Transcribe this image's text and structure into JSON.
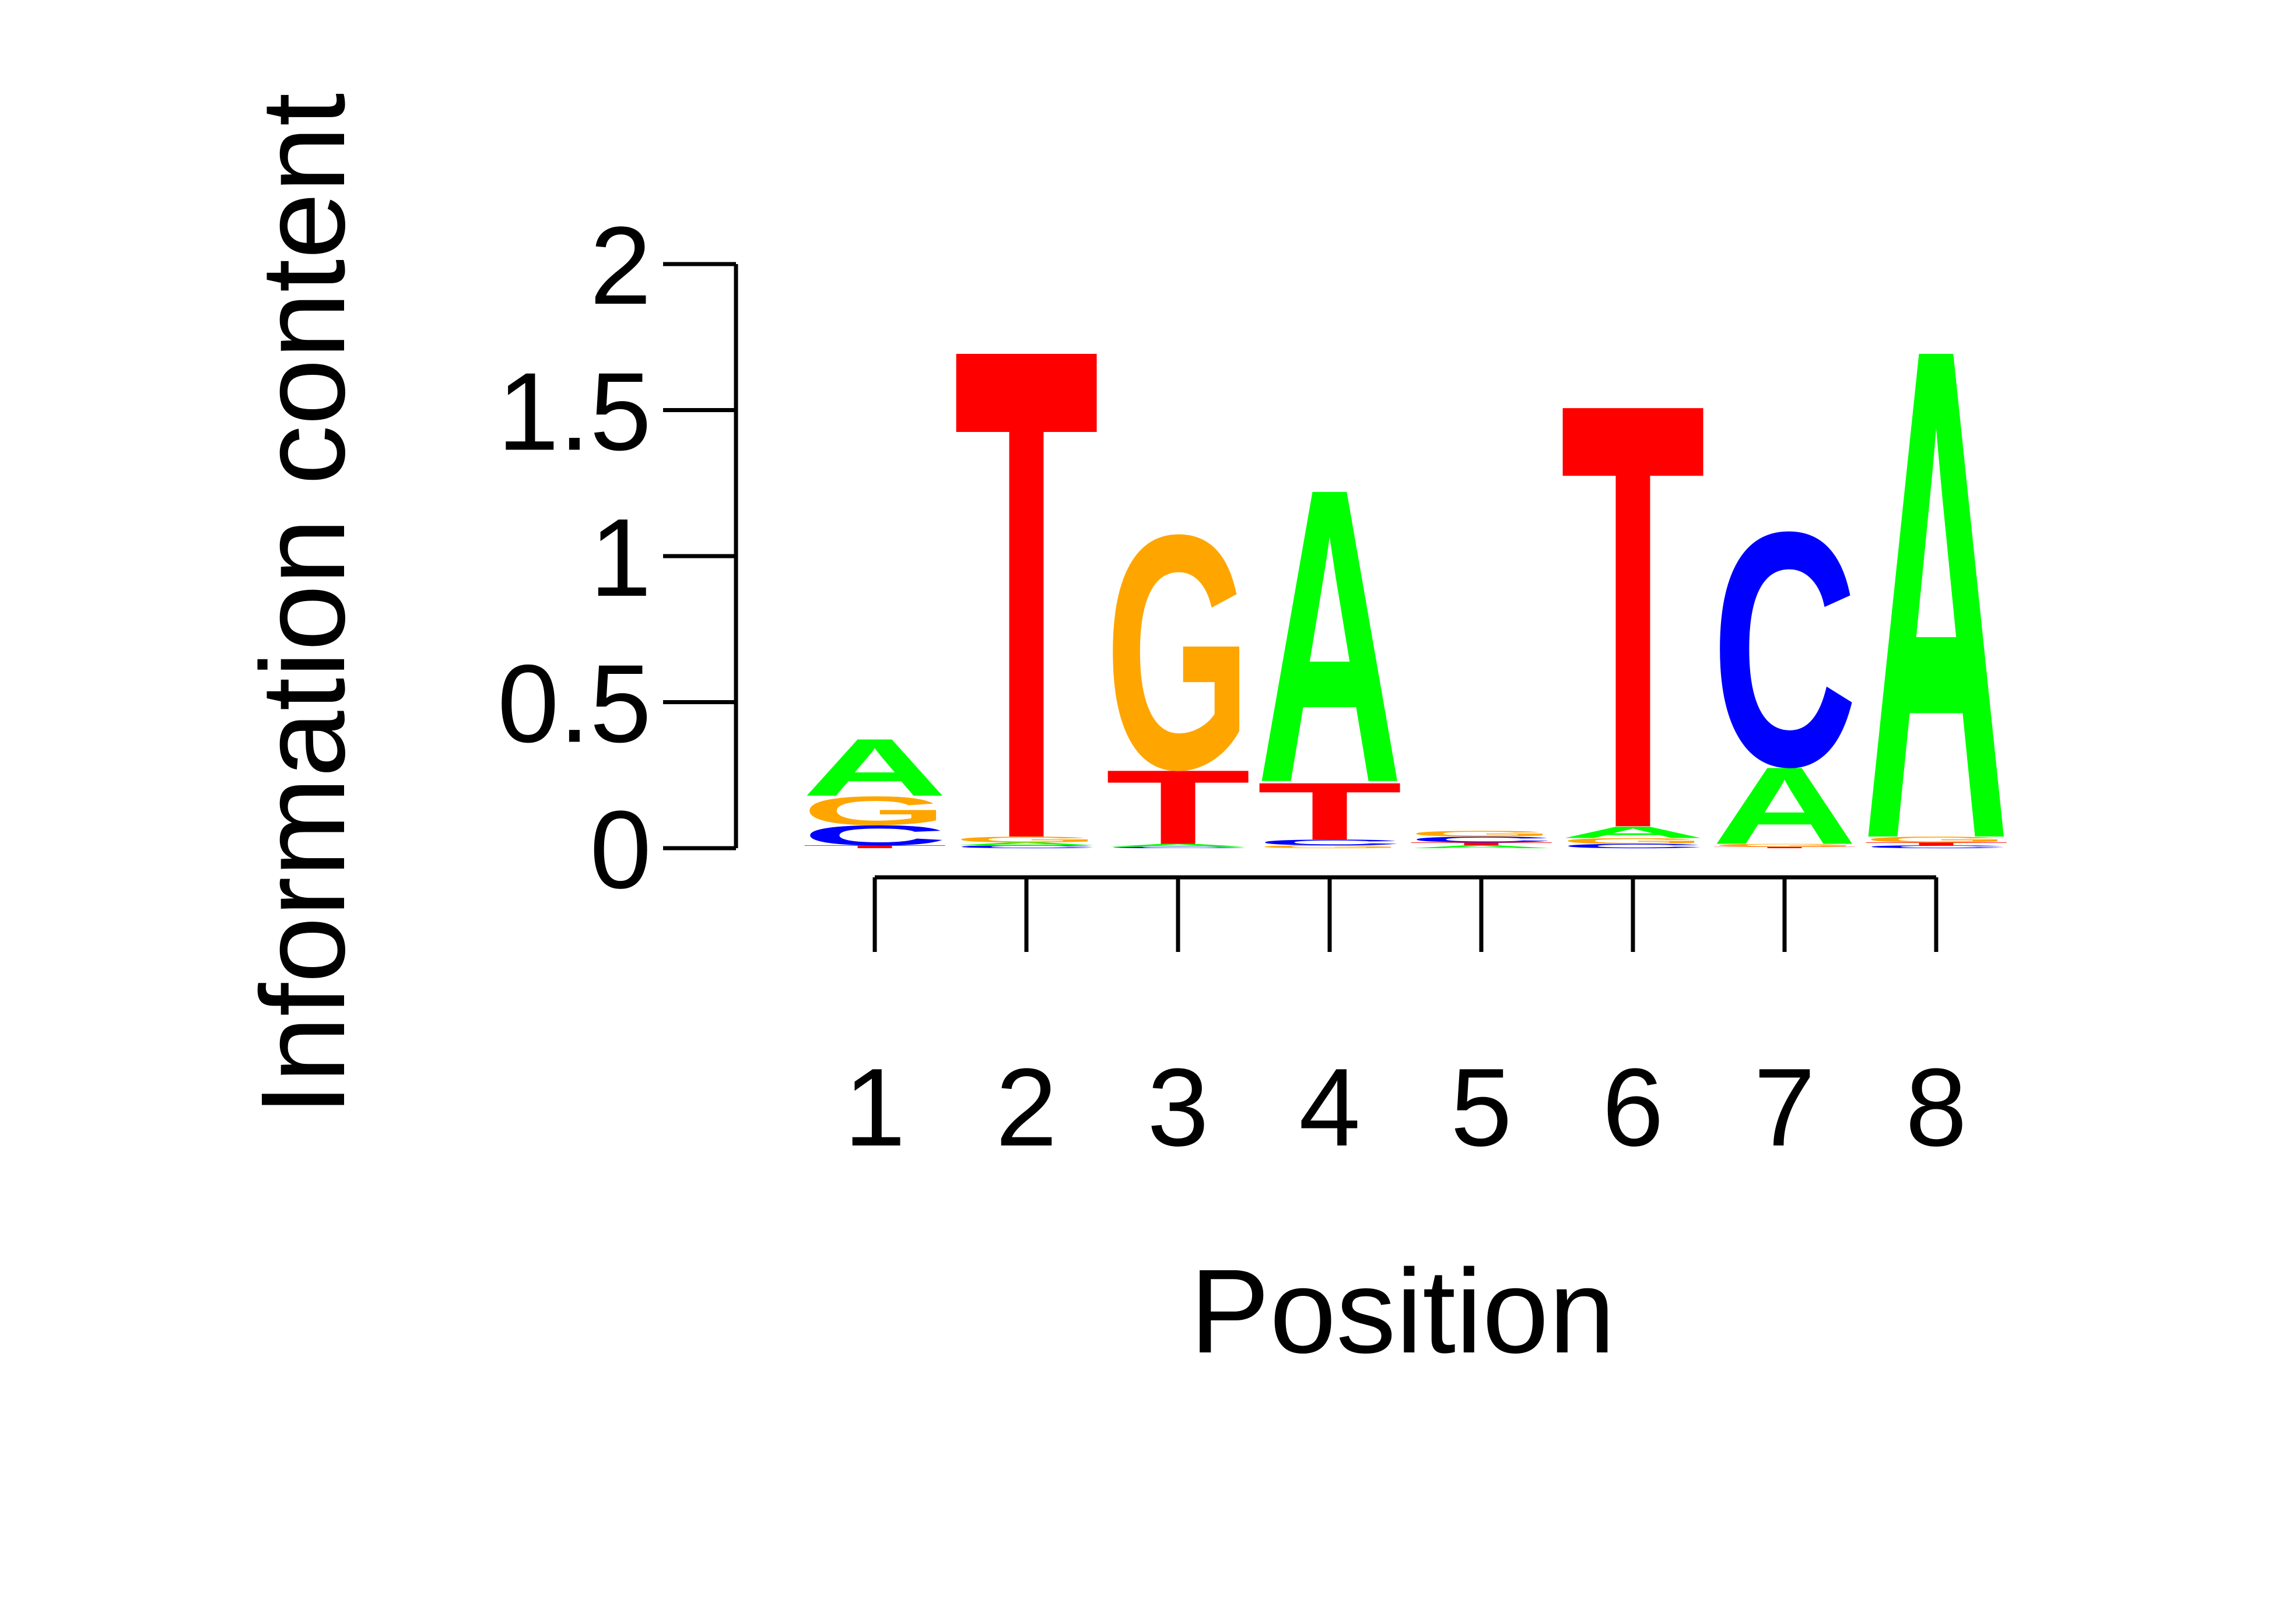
{
  "chart_data": {
    "type": "sequence-logo",
    "title": "",
    "xlabel": "Position",
    "ylabel": "Information content",
    "ylim": [
      0,
      2
    ],
    "yticks": [
      "0",
      "0.5",
      "1",
      "1.5",
      "2"
    ],
    "xticks": [
      "1",
      "2",
      "3",
      "4",
      "5",
      "6",
      "7",
      "8"
    ],
    "colors": {
      "A": "#00ff00",
      "C": "#0000ff",
      "G": "#ffa500",
      "T": "#ff0000"
    },
    "positions": [
      {
        "position": "1",
        "letters": [
          {
            "base": "T",
            "height": 0.01
          },
          {
            "base": "C",
            "height": 0.07
          },
          {
            "base": "G",
            "height": 0.1
          },
          {
            "base": "A",
            "height": 0.2
          }
        ]
      },
      {
        "position": "2",
        "letters": [
          {
            "base": "C",
            "height": 0.01
          },
          {
            "base": "A",
            "height": 0.01
          },
          {
            "base": "G",
            "height": 0.02
          },
          {
            "base": "T",
            "height": 1.72
          }
        ]
      },
      {
        "position": "3",
        "letters": [
          {
            "base": "C",
            "height": 0.005
          },
          {
            "base": "A",
            "height": 0.01
          },
          {
            "base": "T",
            "height": 0.26
          },
          {
            "base": "G",
            "height": 0.82
          }
        ]
      },
      {
        "position": "4",
        "letters": [
          {
            "base": "G",
            "height": 0.01
          },
          {
            "base": "C",
            "height": 0.02
          },
          {
            "base": "T",
            "height": 0.2
          },
          {
            "base": "A",
            "height": 1.03
          }
        ]
      },
      {
        "position": "5",
        "letters": [
          {
            "base": "A",
            "height": 0.01
          },
          {
            "base": "T",
            "height": 0.01
          },
          {
            "base": "C",
            "height": 0.02
          },
          {
            "base": "G",
            "height": 0.02
          }
        ]
      },
      {
        "position": "6",
        "letters": [
          {
            "base": "C",
            "height": 0.015
          },
          {
            "base": "G",
            "height": 0.02
          },
          {
            "base": "A",
            "height": 0.04
          },
          {
            "base": "T",
            "height": 1.49
          }
        ]
      },
      {
        "position": "7",
        "letters": [
          {
            "base": "T",
            "height": 0.005
          },
          {
            "base": "G",
            "height": 0.01
          },
          {
            "base": "A",
            "height": 0.27
          },
          {
            "base": "C",
            "height": 0.82
          }
        ]
      },
      {
        "position": "8",
        "letters": [
          {
            "base": "C",
            "height": 0.01
          },
          {
            "base": "T",
            "height": 0.01
          },
          {
            "base": "G",
            "height": 0.02
          },
          {
            "base": "A",
            "height": 1.72
          }
        ]
      }
    ]
  }
}
